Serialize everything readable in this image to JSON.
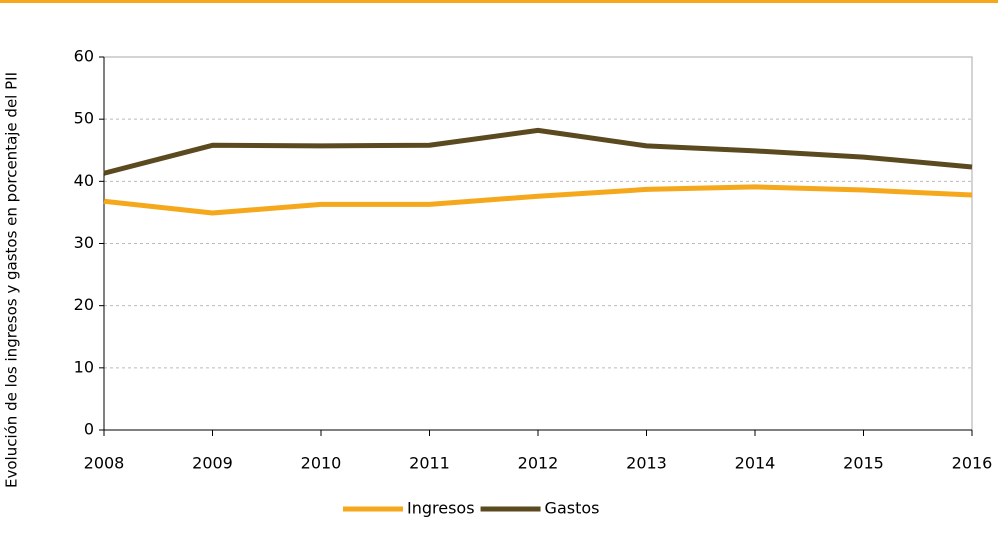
{
  "chart_data": {
    "type": "line",
    "y_label": "Evolución de los ingresos y gastos en porcentaje del PII",
    "x": [
      2008,
      2009,
      2010,
      2011,
      2012,
      2013,
      2014,
      2015,
      2016
    ],
    "xlim": [
      2008,
      2016
    ],
    "xticks": [
      2008,
      2009,
      2010,
      2011,
      2012,
      2013,
      2014,
      2015,
      2016
    ],
    "ylim": [
      0,
      60
    ],
    "yticks": [
      0,
      10,
      20,
      30,
      40,
      50,
      60
    ],
    "grid": true,
    "legend": "bottom",
    "series": [
      {
        "name": "Ingresos",
        "color": "#f5a81c",
        "values": [
          36.8,
          34.9,
          36.3,
          36.3,
          37.6,
          38.7,
          39.1,
          38.6,
          37.8
        ]
      },
      {
        "name": "Gastos",
        "color": "#5b4a1f",
        "values": [
          41.3,
          45.8,
          45.7,
          45.8,
          48.2,
          45.7,
          44.9,
          43.9,
          42.3
        ]
      }
    ]
  }
}
